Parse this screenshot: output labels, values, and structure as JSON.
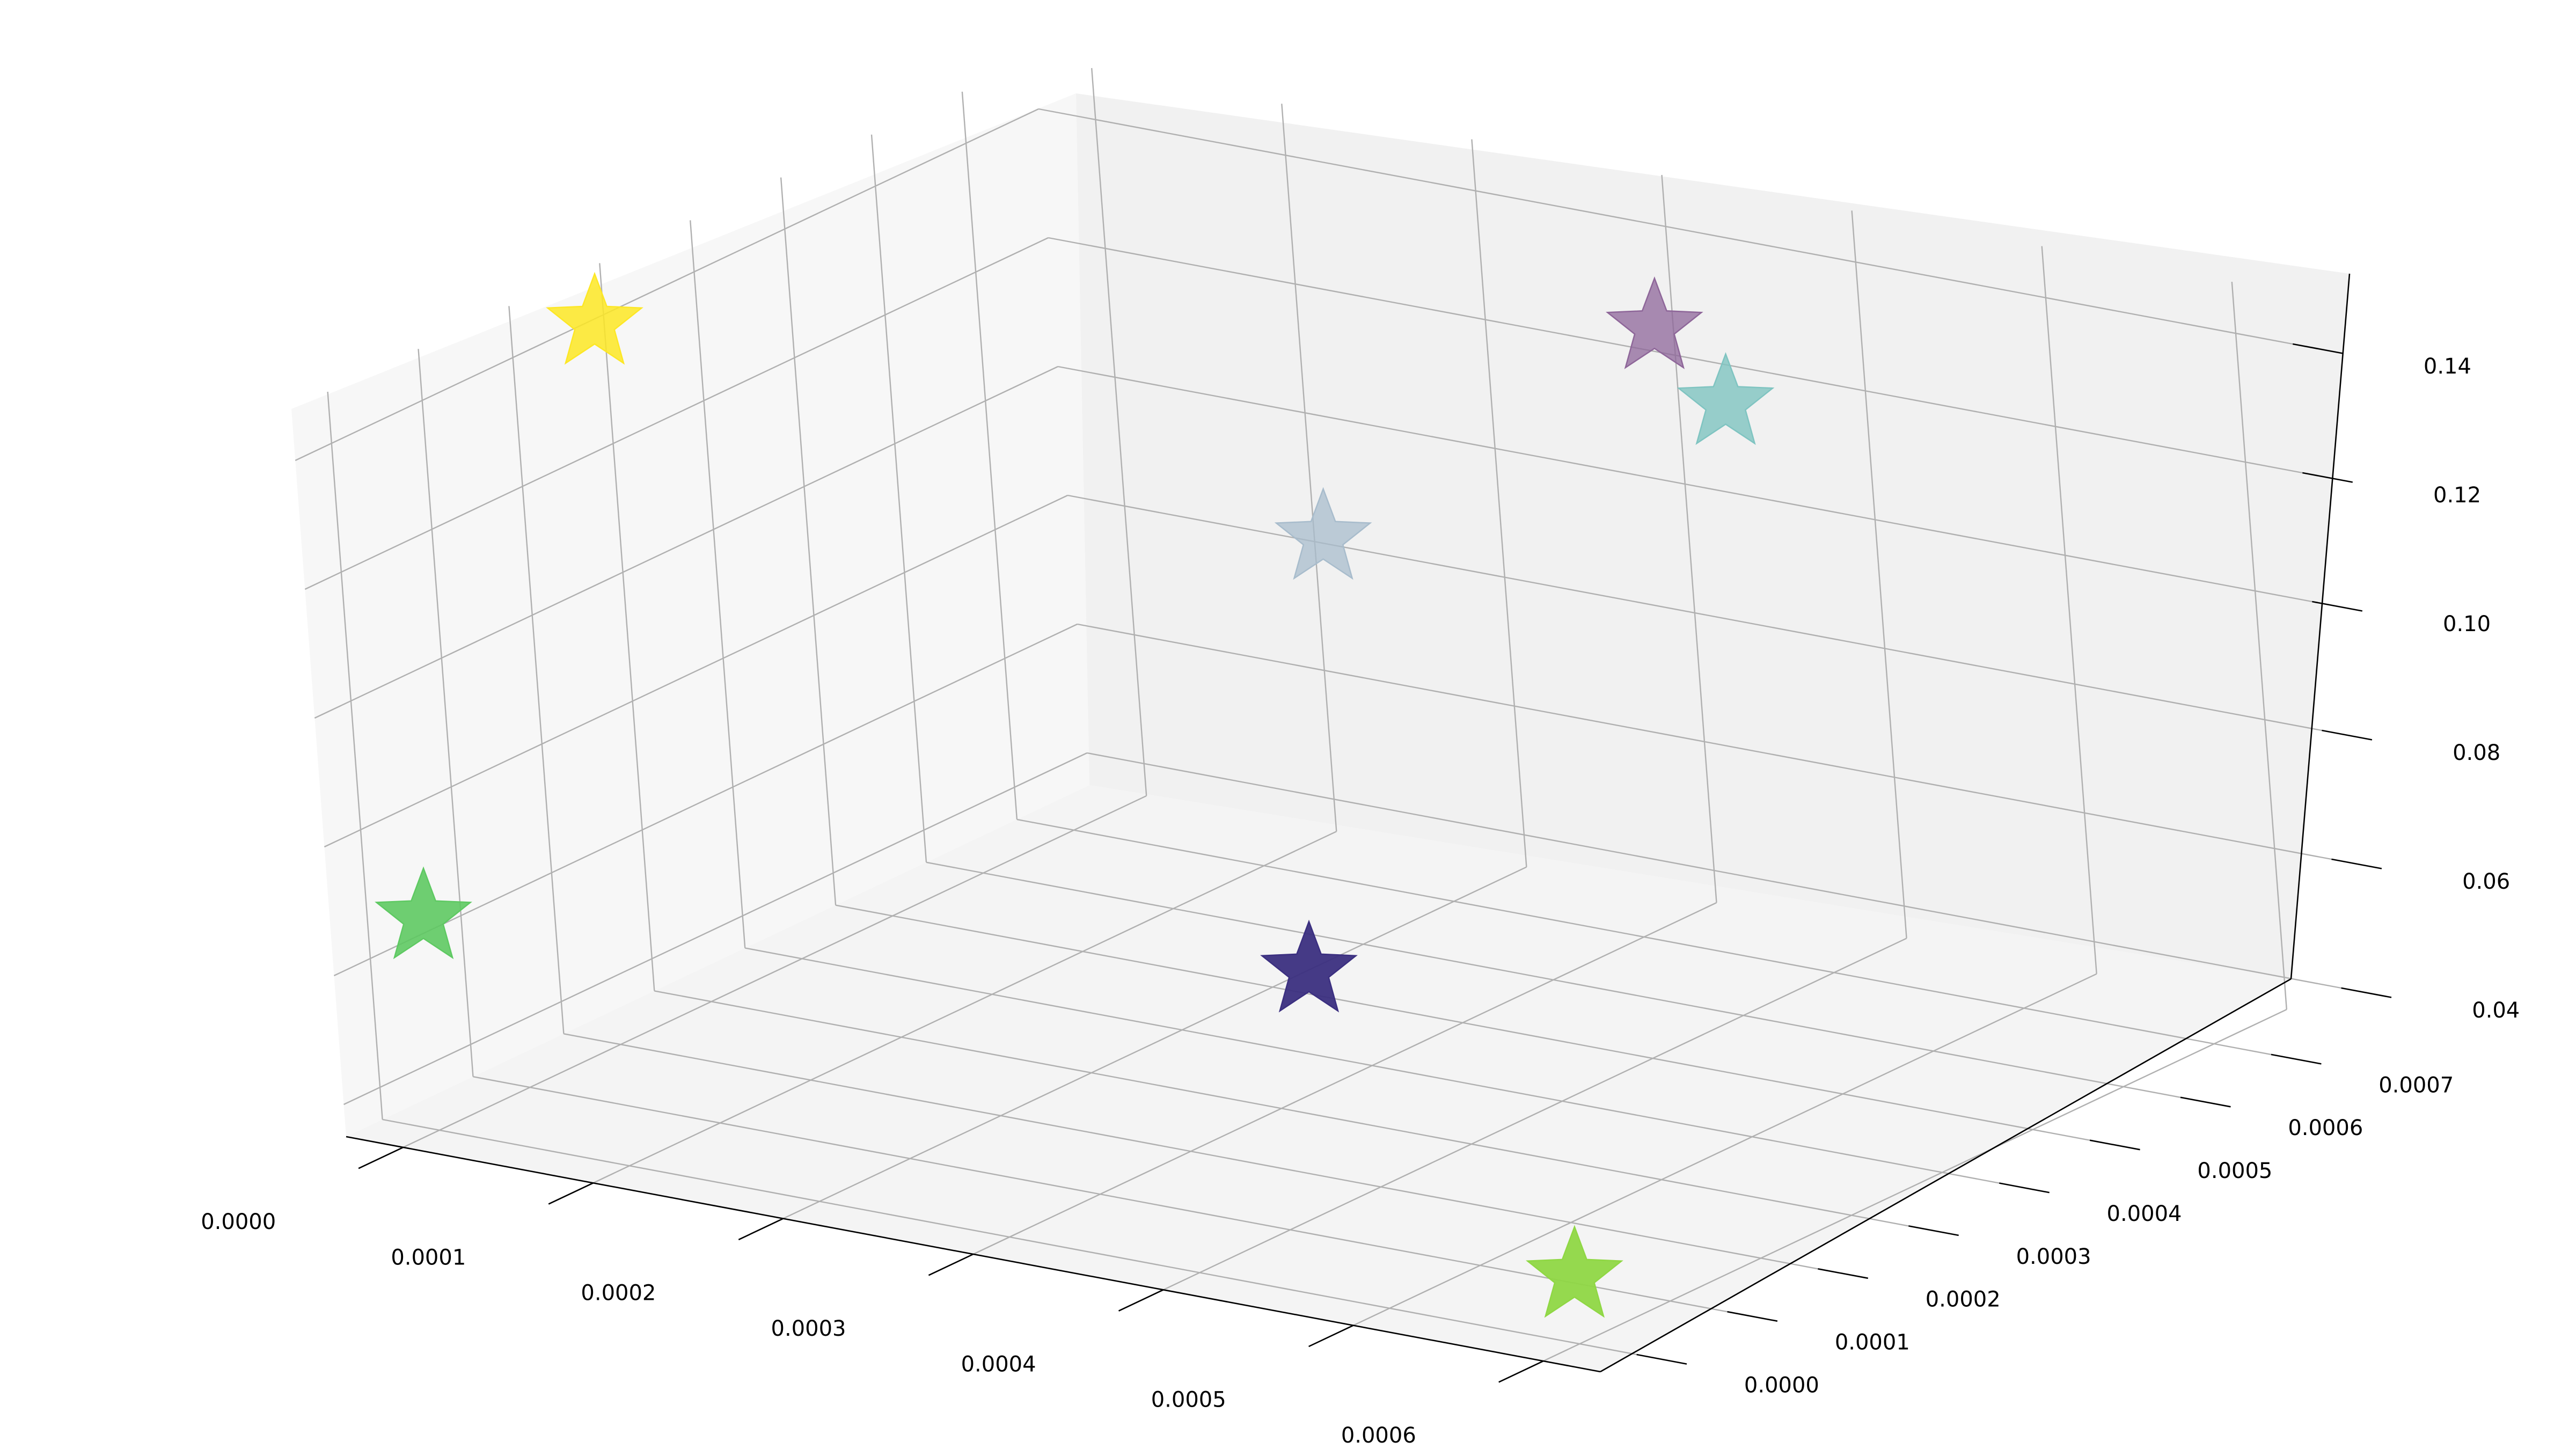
{
  "chart_data": {
    "type": "scatter",
    "title": "",
    "xlabel": "",
    "ylabel": "",
    "zlabel": "",
    "marker": "star",
    "grid": true,
    "x_ticks": [
      "0.0000",
      "0.0001",
      "0.0002",
      "0.0003",
      "0.0004",
      "0.0005",
      "0.0006"
    ],
    "y_ticks": [
      "0.0000",
      "0.0001",
      "0.0002",
      "0.0003",
      "0.0004",
      "0.0005",
      "0.0006",
      "0.0007"
    ],
    "z_ticks": [
      "0.04",
      "0.06",
      "0.08",
      "0.10",
      "0.12",
      "0.14"
    ],
    "xlim": [
      -3e-05,
      0.00063
    ],
    "ylim": [
      -4e-05,
      0.00078
    ],
    "zlim": [
      0.035,
      0.148
    ],
    "points": [
      {
        "x": 0.0,
        "y": 0.0,
        "z": 0.068,
        "color": "#5ec962",
        "alpha": 0.9
      },
      {
        "x": 0.0,
        "y": 0.00023,
        "z": 0.145,
        "color": "#fde725",
        "alpha": 0.85
      },
      {
        "x": 0.00023,
        "y": 0.00048,
        "z": 0.0405,
        "color": "#3b2f80",
        "alpha": 0.95
      },
      {
        "x": 0.00026,
        "y": 0.00047,
        "z": 0.11,
        "color": "#a8bccc",
        "alpha": 0.75
      },
      {
        "x": 0.00031,
        "y": 0.00074,
        "z": 0.1275,
        "color": "#8e6699",
        "alpha": 0.75
      },
      {
        "x": 0.00036,
        "y": 0.00071,
        "z": 0.1205,
        "color": "#7fc4c1",
        "alpha": 0.8
      },
      {
        "x": 0.0006,
        "y": 0.0,
        "z": 0.0455,
        "color": "#8fd744",
        "alpha": 0.95
      }
    ],
    "colors": {
      "pane_left": "#f7f7f7",
      "pane_back": "#f1f1f1",
      "pane_floor": "#f4f4f4",
      "grid": "#b0b0b0",
      "axis": "#000000"
    }
  }
}
